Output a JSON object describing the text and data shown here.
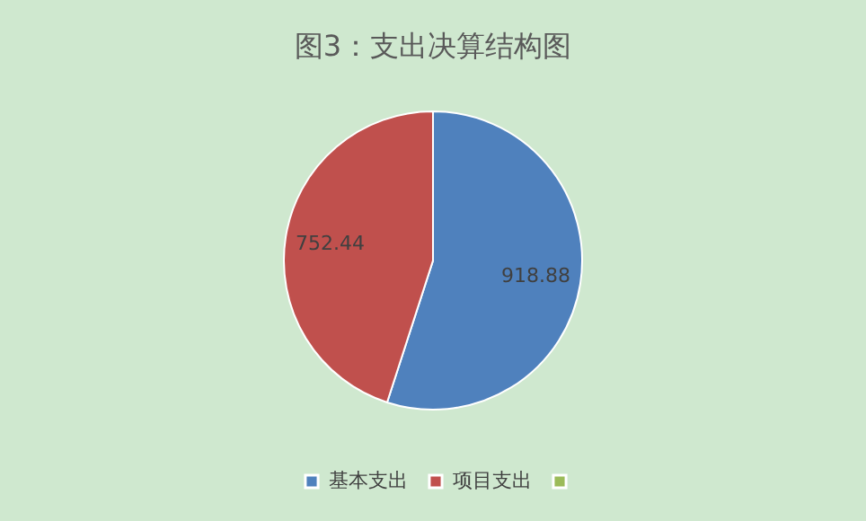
{
  "chart_data": {
    "type": "pie",
    "title": "图3：支出决算结构图",
    "categories": [
      "基本支出",
      "项目支出",
      null
    ],
    "values": [
      918.88,
      752.44,
      0
    ],
    "colors": [
      "#4f81bd",
      "#c0504d",
      "#9bbb59"
    ],
    "value_labels": [
      "918.88",
      "752.44",
      null
    ],
    "legend": "bottom"
  }
}
